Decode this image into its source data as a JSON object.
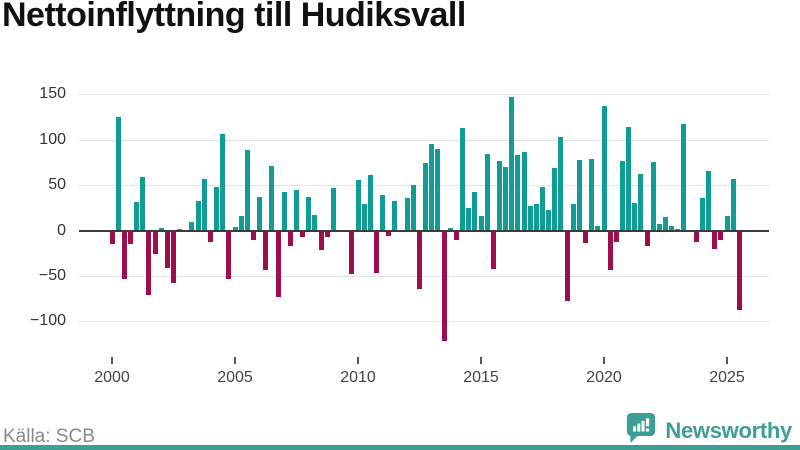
{
  "page": {
    "title": "Nettoinflyttning till Hudiksvall"
  },
  "source": {
    "label": "Källa: SCB"
  },
  "brand": {
    "name": "Newsworthy",
    "icon": "newsworthy-speech-bubble-chart-icon"
  },
  "colors": {
    "positive_bar": "#0f9d96",
    "negative_bar": "#a00d4b",
    "brand_teal": "#3d9e93",
    "zero_line": "#3b3b3b",
    "gridline": "#e2e2e2",
    "title_text": "#111111",
    "axis_text": "#444444",
    "source_text": "#8a8a8a"
  },
  "chart_data": {
    "type": "bar",
    "title": "Nettoinflyttning till Hudiksvall",
    "frequency": "quarterly",
    "x_start_year": 2000,
    "period_start": "2000Q1",
    "period_end": "2025Q3",
    "xlabel": "",
    "ylabel": "",
    "grid": "horizontal",
    "legend": "none",
    "y_ticks": [
      150,
      100,
      50,
      0,
      -50,
      -100
    ],
    "ylim": [
      -135,
      165
    ],
    "x_tick_labels": [
      "2000",
      "2005",
      "2010",
      "2015",
      "2020",
      "2025"
    ],
    "values": [
      -15,
      125,
      -53,
      -15,
      31,
      59,
      -71,
      -26,
      3,
      -41,
      -58,
      2,
      1,
      9,
      33,
      57,
      -13,
      48,
      106,
      -53,
      4,
      16,
      89,
      -10,
      37,
      -43,
      71,
      -73,
      42,
      -17,
      45,
      -7,
      37,
      17,
      -22,
      -7,
      47,
      1,
      1,
      -48,
      56,
      29,
      61,
      -47,
      39,
      -6,
      32,
      1,
      36,
      50,
      -64,
      74,
      95,
      90,
      -122,
      3,
      -11,
      113,
      25,
      42,
      16,
      84,
      -42,
      77,
      70,
      147,
      83,
      87,
      27,
      29,
      48,
      23,
      69,
      103,
      -78,
      29,
      78,
      -14,
      79,
      5,
      137,
      -43,
      -13,
      77,
      114,
      30,
      62,
      -17,
      76,
      7,
      15,
      5,
      2,
      117,
      1,
      -13,
      36,
      66,
      -20,
      -10,
      16,
      57,
      -88
    ]
  }
}
